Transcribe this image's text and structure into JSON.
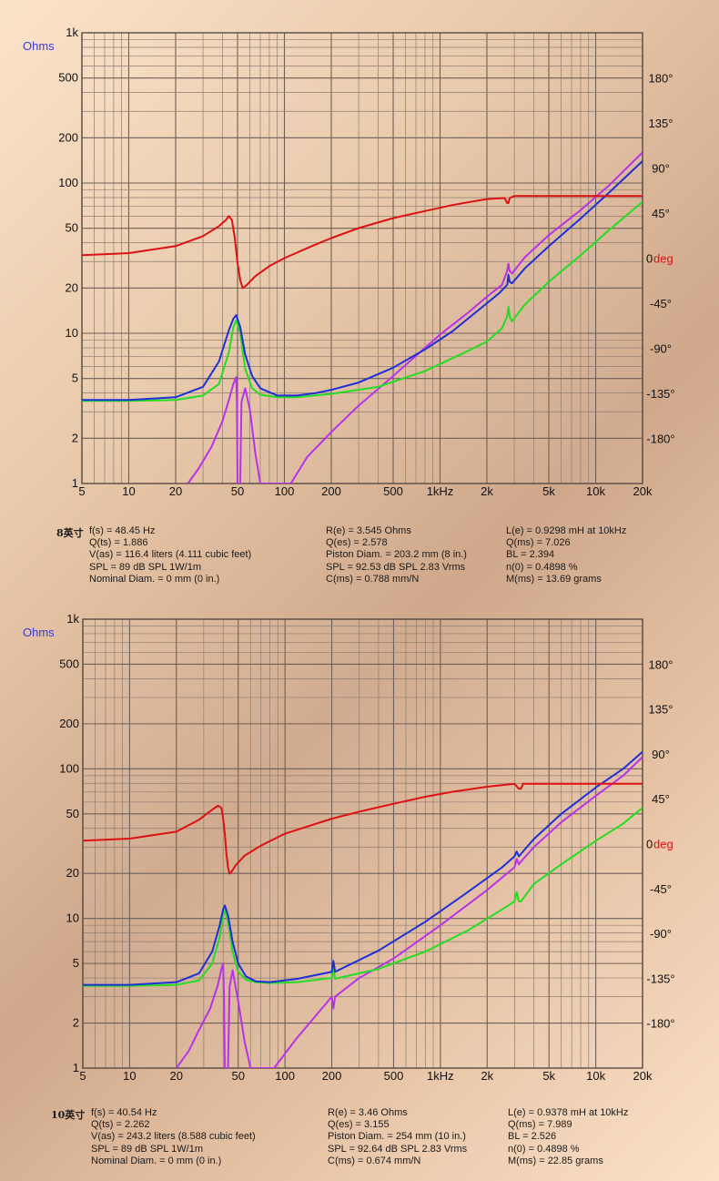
{
  "chart_data": [
    {
      "type": "line",
      "panel_label": "8英寸",
      "units": {
        "left": "Ohms",
        "right": "deg"
      },
      "x_scale": "log",
      "y_scale": "log",
      "xlim": [
        5,
        20000
      ],
      "ylim": [
        1,
        1000
      ],
      "phase_lim": [
        -225,
        225
      ],
      "x_tick_labels": [
        "5",
        "10",
        "20",
        "50",
        "100",
        "200",
        "500",
        "1kHz",
        "2k",
        "5k",
        "10k",
        "20k"
      ],
      "x_tick_values": [
        5,
        10,
        20,
        50,
        100,
        200,
        500,
        1000,
        2000,
        5000,
        10000,
        20000
      ],
      "y_tick_labels": [
        "1",
        "2",
        "5",
        "10",
        "20",
        "50",
        "100",
        "200",
        "500",
        "1k"
      ],
      "y_tick_values": [
        1,
        2,
        5,
        10,
        20,
        50,
        100,
        200,
        500,
        1000
      ],
      "phase_tick_labels": [
        "180°",
        "135°",
        "90°",
        "45°",
        "0",
        "-45°",
        "-90°",
        "-135°",
        "-180°"
      ],
      "phase_tick_values": [
        180,
        135,
        90,
        45,
        0,
        -45,
        -90,
        -135,
        -180
      ],
      "series": [
        {
          "name": "impedance",
          "color": "#1f2fd6",
          "axis": "left",
          "x": [
            5,
            10,
            20,
            30,
            38,
            44,
            47,
            49,
            52,
            56,
            62,
            70,
            90,
            120,
            160,
            200,
            300,
            500,
            800,
            1200,
            1800,
            2400,
            2700,
            2750,
            2800,
            2900,
            3500,
            5000,
            8000,
            12000,
            20000
          ],
          "y": [
            3.6,
            3.6,
            3.75,
            4.4,
            6.5,
            10.5,
            12.5,
            13.2,
            11,
            7.2,
            5.2,
            4.3,
            3.85,
            3.85,
            4.0,
            4.2,
            4.7,
            5.9,
            7.8,
            10.3,
            14.5,
            18.5,
            21,
            24.5,
            22,
            21.5,
            27,
            38,
            58,
            85,
            140
          ]
        },
        {
          "name": "resistance",
          "color": "#22dd22",
          "axis": "left",
          "x": [
            5,
            10,
            20,
            30,
            38,
            44,
            47,
            49,
            52,
            56,
            62,
            70,
            90,
            120,
            200,
            400,
            800,
            1500,
            2000,
            2500,
            2700,
            2750,
            2800,
            2900,
            3500,
            5000,
            8000,
            12000,
            20000
          ],
          "y": [
            3.55,
            3.55,
            3.6,
            3.85,
            4.6,
            7.5,
            11,
            12.2,
            10,
            5.8,
            4.3,
            3.9,
            3.75,
            3.75,
            3.95,
            4.4,
            5.6,
            7.6,
            8.8,
            10.8,
            13,
            15,
            13,
            12,
            15.5,
            22,
            33,
            48,
            75
          ]
        },
        {
          "name": "reactance",
          "color": "#b832e8",
          "axis": "left",
          "x": [
            24,
            28,
            34,
            40,
            44,
            47,
            49,
            49.5,
            50,
            51,
            52,
            53,
            56,
            60,
            65,
            70,
            110,
            140,
            200,
            300,
            500,
            1000,
            1500,
            2000,
            2500,
            2700,
            2750,
            2800,
            2900,
            3500,
            5000,
            8000,
            12000,
            20000
          ],
          "y": [
            1,
            1.25,
            1.75,
            2.6,
            3.6,
            4.6,
            5.1,
            3.5,
            1,
            1,
            1,
            3.5,
            4.3,
            3.1,
            1.6,
            1,
            1,
            1.5,
            2.2,
            3.3,
            5.2,
            9.8,
            13.6,
            17.5,
            21,
            26,
            29,
            26,
            25,
            32,
            45,
            66,
            95,
            160
          ]
        },
        {
          "name": "phase",
          "color": "#dd1111",
          "axis": "right",
          "x": [
            5,
            10,
            20,
            30,
            38,
            42,
            44,
            46,
            48,
            50,
            52,
            54,
            58,
            65,
            80,
            100,
            150,
            200,
            300,
            500,
            800,
            1200,
            2000,
            2600,
            2700,
            2750,
            2800,
            3000,
            4000,
            8000,
            20000
          ],
          "y": [
            3,
            5,
            12,
            22,
            32,
            38,
            42,
            38,
            20,
            -5,
            -22,
            -30,
            -26,
            -18,
            -8,
            0,
            12,
            20,
            30,
            40,
            47,
            53,
            59,
            60,
            55,
            55,
            60,
            62,
            62,
            62,
            62
          ]
        }
      ],
      "parameters": {
        "col1": [
          "f(s) = 48.45 Hz",
          "Q(ts) = 1.886",
          "V(as) = 116.4 liters  (4.111 cubic feet)",
          "SPL = 89 dB SPL 1W/1m",
          "Nominal Diam. = 0 mm (0 in.)"
        ],
        "col2": [
          "R(e) = 3.545 Ohms",
          "Q(es) = 2.578",
          "Piston Diam. = 203.2 mm (8 in.)",
          "SPL = 92.53 dB SPL 2.83 Vrms",
          "C(ms) = 0.788 mm/N"
        ],
        "col3": [
          "L(e) = 0.9298 mH at 10kHz",
          "Q(ms) = 7.026",
          "BL = 2.394",
          "n(0) = 0.4898 %",
          "M(ms) = 13.69 grams"
        ]
      }
    },
    {
      "type": "line",
      "panel_label": "10英寸",
      "units": {
        "left": "Ohms",
        "right": "deg"
      },
      "x_scale": "log",
      "y_scale": "log",
      "xlim": [
        5,
        20000
      ],
      "ylim": [
        1,
        1000
      ],
      "phase_lim": [
        -225,
        225
      ],
      "x_tick_labels": [
        "5",
        "10",
        "20",
        "50",
        "100",
        "200",
        "500",
        "1kHz",
        "2k",
        "5k",
        "10k",
        "20k"
      ],
      "x_tick_values": [
        5,
        10,
        20,
        50,
        100,
        200,
        500,
        1000,
        2000,
        5000,
        10000,
        20000
      ],
      "y_tick_labels": [
        "1",
        "2",
        "5",
        "10",
        "20",
        "50",
        "100",
        "200",
        "500",
        "1k"
      ],
      "y_tick_values": [
        1,
        2,
        5,
        10,
        20,
        50,
        100,
        200,
        500,
        1000
      ],
      "phase_tick_labels": [
        "180°",
        "135°",
        "90°",
        "45°",
        "0",
        "-45°",
        "-90°",
        "-135°",
        "-180°"
      ],
      "phase_tick_values": [
        180,
        135,
        90,
        45,
        0,
        -45,
        -90,
        -135,
        -180
      ],
      "series": [
        {
          "name": "impedance",
          "color": "#1f2fd6",
          "axis": "left",
          "x": [
            5,
            10,
            20,
            28,
            34,
            38,
            40,
            41,
            43,
            46,
            50,
            56,
            65,
            80,
            120,
            200,
            205,
            210,
            400,
            800,
            1500,
            2500,
            3000,
            3100,
            3200,
            3300,
            4000,
            6000,
            10000,
            15000,
            20000
          ],
          "y": [
            3.6,
            3.6,
            3.75,
            4.3,
            6,
            9,
            11.5,
            12.2,
            10.5,
            7,
            5,
            4.1,
            3.8,
            3.75,
            3.95,
            4.4,
            5.2,
            4.4,
            6.1,
            9.5,
            15,
            22,
            26,
            28,
            26,
            27,
            34,
            50,
            75,
            100,
            130
          ]
        },
        {
          "name": "resistance",
          "color": "#22dd22",
          "axis": "left",
          "x": [
            5,
            10,
            20,
            28,
            34,
            38,
            40,
            41,
            43,
            46,
            50,
            56,
            65,
            80,
            120,
            200,
            205,
            210,
            400,
            800,
            1500,
            2500,
            3000,
            3100,
            3200,
            3300,
            4000,
            6000,
            10000,
            15000,
            20000
          ],
          "y": [
            3.55,
            3.55,
            3.6,
            3.85,
            5,
            7.5,
            10.5,
            11.3,
            9.5,
            6,
            4.4,
            3.9,
            3.75,
            3.7,
            3.75,
            4.0,
            4.6,
            3.95,
            4.6,
            6,
            8.3,
            11.5,
            13,
            15,
            13,
            13,
            17,
            23,
            33,
            43,
            55
          ]
        },
        {
          "name": "reactance",
          "color": "#b832e8",
          "axis": "left",
          "x": [
            20,
            24,
            28,
            33,
            37,
            39,
            40,
            40.5,
            41,
            42,
            43,
            44,
            46,
            50,
            55,
            60,
            85,
            120,
            200,
            205,
            210,
            300,
            500,
            1000,
            2000,
            3000,
            3100,
            3200,
            3300,
            4000,
            6000,
            10000,
            15000,
            20000
          ],
          "y": [
            1,
            1.3,
            1.8,
            2.5,
            3.6,
            4.6,
            5,
            3,
            1,
            1,
            1,
            3.5,
            4.5,
            2.8,
            1.5,
            1,
            1,
            1.6,
            3,
            2.5,
            3,
            4,
            5.4,
            9,
            15.5,
            22,
            25,
            23,
            24,
            30,
            44,
            66,
            90,
            120
          ]
        },
        {
          "name": "phase",
          "color": "#dd1111",
          "axis": "right",
          "x": [
            5,
            10,
            20,
            28,
            34,
            37,
            39,
            40,
            41,
            42,
            43,
            44,
            45,
            48,
            55,
            70,
            100,
            200,
            300,
            500,
            800,
            1200,
            2000,
            3000,
            3200,
            3300,
            3400,
            4000,
            8000,
            20000
          ],
          "y": [
            3,
            5,
            12,
            24,
            34,
            38,
            36,
            25,
            10,
            -10,
            -24,
            -30,
            -29,
            -22,
            -12,
            -2,
            10,
            25,
            32,
            40,
            47,
            52,
            57,
            60,
            55,
            55,
            60,
            60,
            60,
            60
          ]
        }
      ],
      "parameters": {
        "col1": [
          "f(s) = 40.54 Hz",
          "Q(ts) = 2.262",
          "V(as) = 243.2 liters  (8.588 cubic feet)",
          "SPL = 89 dB SPL 1W/1m",
          "Nominal Diam. = 0 mm (0 in.)"
        ],
        "col2": [
          "R(e) = 3.46 Ohms",
          "Q(es) = 3.155",
          "Piston Diam. = 254 mm (10 in.)",
          "SPL = 92.64 dB SPL 2.83 Vrms",
          "C(ms) = 0.674 mm/N"
        ],
        "col3": [
          "L(e) = 0.9378 mH at 10kHz",
          "Q(ms) = 7.989",
          "BL = 2.526",
          "n(0) = 0.4898 %",
          "M(ms) = 22.85 grams"
        ]
      }
    }
  ]
}
